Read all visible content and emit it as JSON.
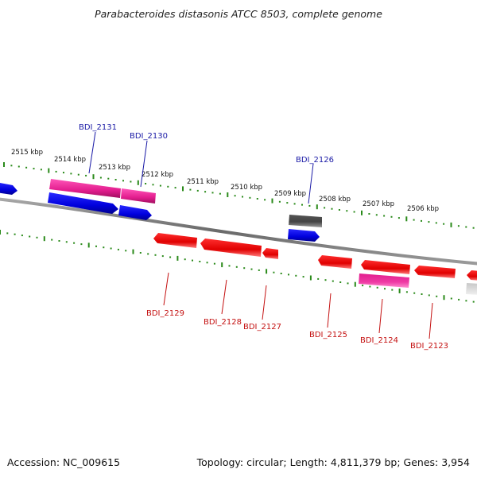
{
  "title": "Parabacteroides distasonis ATCC 8503, complete genome",
  "footer": {
    "accession": "Accession: NC_009615",
    "summary": "Topology: circular; Length: 4,811,379 bp; Genes: 3,954"
  },
  "scale_labels": [
    "2515 kbp",
    "2514 kbp",
    "2513 kbp",
    "2512 kbp",
    "2511 kbp",
    "2510 kbp",
    "2509 kbp",
    "2508 kbp",
    "2507 kbp",
    "2506 kbp"
  ],
  "gene_labels": {
    "top": [
      "BDI_2131",
      "BDI_2130",
      "BDI_2126"
    ],
    "bottom": [
      "BDI_2129",
      "BDI_2128",
      "BDI_2127",
      "BDI_2125",
      "BDI_2124",
      "BDI_2123"
    ]
  },
  "colors": {
    "backbone": "#808080",
    "forward_cds": "#0a0ae0",
    "reverse_cds": "#ee1010",
    "pink_feature": "#e8309a",
    "gray_feature": "#555555",
    "light_gray_feature": "#bdbdbd",
    "tick_green": "#2a8a1a",
    "label_blue": "#1a1aa6",
    "label_red": "#c41010"
  }
}
